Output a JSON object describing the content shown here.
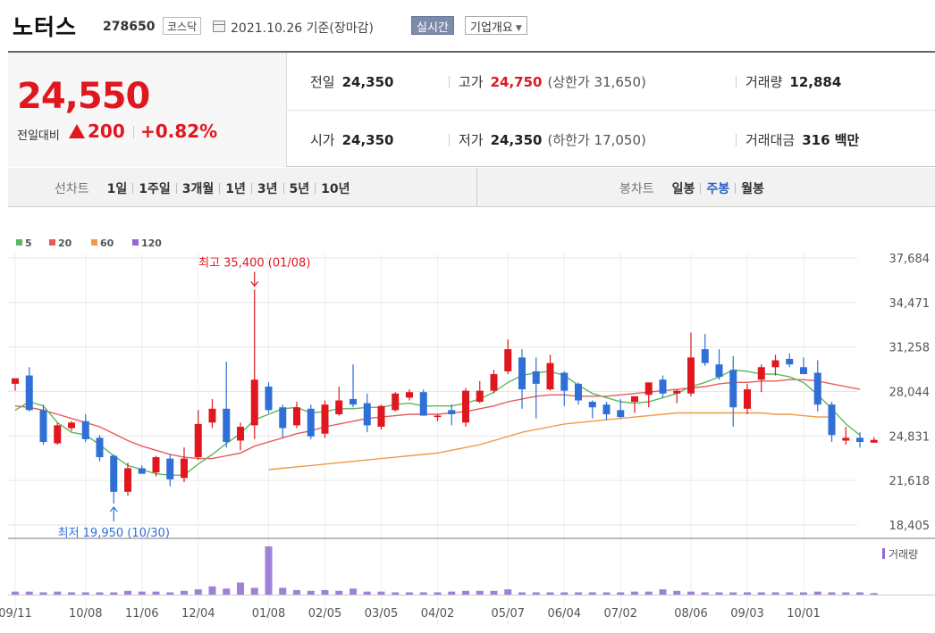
{
  "header": {
    "name": "노터스",
    "code": "278650",
    "market": "코스닥",
    "date": "2021.10.26 기준(장마감)",
    "realtime": "실시간",
    "company": "기업개요"
  },
  "summary": {
    "price": "24,550",
    "change_label": "전일대비",
    "change_value": "200",
    "change_pct": "+0.82%",
    "prev_label": "전일",
    "prev": "24,350",
    "high_label": "고가",
    "high": "24,750",
    "upper_limit": "(상한가 31,650)",
    "volume_label": "거래량",
    "volume": "12,884",
    "open_label": "시가",
    "open": "24,350",
    "low_label": "저가",
    "low": "24,350",
    "lower_limit": "(하한가 17,050)",
    "amount_label": "거래대금",
    "amount": "316 백만"
  },
  "tabs": {
    "line_label": "선차트",
    "line_items": [
      "1일",
      "1주일",
      "3개월",
      "1년",
      "3년",
      "5년",
      "10년"
    ],
    "candle_label": "봉차트",
    "candle_items": [
      "일봉",
      "주봉",
      "월봉"
    ],
    "candle_active": 1
  },
  "colors": {
    "up": "#e0171e",
    "down": "#2f6fd6",
    "ma5": "#5cb85c",
    "ma20": "#e85a5a",
    "ma60": "#f09a45",
    "ma120": "#8e6bd1",
    "volume": "#8e6bd1"
  },
  "chart_data": {
    "type": "candlestick",
    "title": "",
    "legend": [
      "5",
      "20",
      "60",
      "120"
    ],
    "y_ticks": [
      37684,
      34471,
      31258,
      28044,
      24831,
      21618,
      18405
    ],
    "y_tick_labels": [
      "37,684",
      "34,471",
      "31,258",
      "28,044",
      "24,831",
      "21,618",
      "18,405"
    ],
    "ylim": [
      18405,
      37684
    ],
    "x_tick_labels": [
      "09/11",
      "10/08",
      "11/06",
      "12/04",
      "01/08",
      "02/05",
      "03/05",
      "04/02",
      "05/07",
      "06/04",
      "07/02",
      "08/06",
      "09/03",
      "10/01"
    ],
    "x_tick_bars": [
      0,
      5,
      9,
      13,
      18,
      22,
      26,
      30,
      35,
      39,
      43,
      48,
      52,
      56
    ],
    "max_annotation": "최고 35,400 (01/08)",
    "min_annotation": "최저 19,950 (10/30)",
    "volume_label": "거래량",
    "candles": [
      [
        28600,
        28900,
        28100,
        29000
      ],
      [
        29200,
        29800,
        26600,
        26700
      ],
      [
        26700,
        27100,
        24200,
        24400
      ],
      [
        24300,
        25800,
        24200,
        25600
      ],
      [
        25400,
        25900,
        25200,
        25800
      ],
      [
        25900,
        26400,
        24400,
        24600
      ],
      [
        24700,
        24900,
        23000,
        23300
      ],
      [
        23400,
        23500,
        19950,
        20800
      ],
      [
        20800,
        22900,
        20500,
        22500
      ],
      [
        22500,
        22700,
        22100,
        22100
      ],
      [
        22200,
        23400,
        21900,
        23300
      ],
      [
        23200,
        23500,
        21200,
        21700
      ],
      [
        21800,
        24000,
        21500,
        23200
      ],
      [
        23300,
        26700,
        23100,
        25700
      ],
      [
        25800,
        27500,
        25400,
        26800
      ],
      [
        26800,
        30200,
        24000,
        24400
      ],
      [
        24500,
        25800,
        23800,
        25500
      ],
      [
        25600,
        35400,
        24600,
        28900
      ],
      [
        28400,
        28700,
        26500,
        26700
      ],
      [
        26900,
        27100,
        24700,
        25400
      ],
      [
        25600,
        27300,
        25400,
        26900
      ],
      [
        26800,
        27100,
        24600,
        24800
      ],
      [
        25000,
        27400,
        24700,
        27100
      ],
      [
        26400,
        28400,
        26300,
        27400
      ],
      [
        27500,
        30000,
        26900,
        27100
      ],
      [
        27200,
        27900,
        25100,
        25600
      ],
      [
        25500,
        27100,
        25300,
        27000
      ],
      [
        26700,
        28000,
        26600,
        27900
      ],
      [
        27600,
        28200,
        27400,
        28000
      ],
      [
        28000,
        28200,
        26300,
        26300
      ],
      [
        26200,
        26400,
        25900,
        26300
      ],
      [
        26700,
        27100,
        25600,
        26400
      ],
      [
        25800,
        28300,
        25500,
        28100
      ],
      [
        27300,
        28800,
        27200,
        28100
      ],
      [
        28100,
        29600,
        27900,
        29300
      ],
      [
        29500,
        31800,
        29300,
        31100
      ],
      [
        30500,
        31100,
        26800,
        28200
      ],
      [
        29500,
        30500,
        26100,
        28600
      ],
      [
        28200,
        30700,
        28100,
        30100
      ],
      [
        29400,
        29500,
        27000,
        28100
      ],
      [
        28600,
        28700,
        27100,
        27400
      ],
      [
        27300,
        27400,
        26100,
        26900
      ],
      [
        27100,
        27300,
        26000,
        26400
      ],
      [
        26700,
        27500,
        26100,
        26200
      ],
      [
        27300,
        27700,
        26500,
        27700
      ],
      [
        27800,
        28700,
        26900,
        28700
      ],
      [
        28900,
        29200,
        27600,
        27900
      ],
      [
        27900,
        28200,
        27200,
        28100
      ],
      [
        27900,
        32300,
        27700,
        30500
      ],
      [
        31100,
        32200,
        29900,
        30100
      ],
      [
        30000,
        31100,
        28900,
        29100
      ],
      [
        29600,
        30600,
        25500,
        26900
      ],
      [
        26800,
        28600,
        26400,
        28200
      ],
      [
        28900,
        30000,
        28000,
        29800
      ],
      [
        29800,
        30700,
        29200,
        30300
      ],
      [
        30400,
        30800,
        29800,
        30000
      ],
      [
        29800,
        30500,
        29400,
        29300
      ],
      [
        29400,
        30300,
        26600,
        27100
      ],
      [
        27100,
        27300,
        24400,
        24900
      ],
      [
        24500,
        25500,
        24200,
        24700
      ],
      [
        24700,
        25100,
        24000,
        24400
      ],
      [
        24350,
        24750,
        24350,
        24550
      ]
    ],
    "volume": [
      4,
      4,
      3,
      4,
      3,
      3,
      3,
      3,
      5,
      4,
      4,
      3,
      5,
      7,
      11,
      8,
      16,
      9,
      64,
      9,
      6,
      5,
      6,
      5,
      8,
      4,
      4,
      3,
      3,
      3,
      3,
      4,
      5,
      5,
      5,
      7,
      3,
      3,
      3,
      3,
      3,
      3,
      3,
      3,
      4,
      4,
      7,
      5,
      4,
      3,
      3,
      3,
      3,
      3,
      3,
      3,
      3,
      4,
      3,
      3,
      3,
      2
    ],
    "ma_series": {
      "5": [
        26700,
        27300,
        27000,
        25800,
        25100,
        24900,
        24200,
        23400,
        22700,
        22400,
        22100,
        22000,
        22000,
        22800,
        23500,
        24300,
        25000,
        26000,
        26400,
        26800,
        26900,
        26500,
        26600,
        26800,
        26800,
        26900,
        26900,
        27100,
        27200,
        27000,
        27000,
        27000,
        27200,
        27500,
        28000,
        28700,
        29200,
        29400,
        29500,
        29200,
        28500,
        27900,
        27600,
        27300,
        27200,
        27300,
        27600,
        27900,
        28400,
        28700,
        29100,
        29600,
        29500,
        29300,
        29300,
        29100,
        28700,
        27800,
        26800,
        25700,
        24900
      ],
      "20": [
        27000,
        26900,
        26700,
        26400,
        26100,
        25800,
        25500,
        25000,
        24500,
        24100,
        23800,
        23500,
        23300,
        23200,
        23200,
        23400,
        23600,
        24100,
        24400,
        24700,
        25000,
        25200,
        25500,
        25700,
        25900,
        26100,
        26200,
        26300,
        26400,
        26400,
        26400,
        26500,
        26600,
        26800,
        27000,
        27300,
        27500,
        27700,
        27800,
        27800,
        27700,
        27700,
        27700,
        27800,
        27900,
        28000,
        28100,
        28200,
        28300,
        28400,
        28600,
        28700,
        28700,
        28800,
        28800,
        28900,
        28900,
        28800,
        28600,
        28400,
        28200
      ],
      "60": [
        22400,
        22500,
        22600,
        22700,
        22800,
        22900,
        23000,
        23100,
        23200,
        23300,
        23400,
        23500,
        23600,
        23800,
        24000,
        24200,
        24500,
        24800,
        25100,
        25300,
        25500,
        25700,
        25800,
        25900,
        26000,
        26100,
        26200,
        26300,
        26400,
        26500,
        26500,
        26500,
        26500,
        26500,
        26500,
        26500,
        26400,
        26400,
        26300,
        26200,
        26200
      ]
    }
  }
}
